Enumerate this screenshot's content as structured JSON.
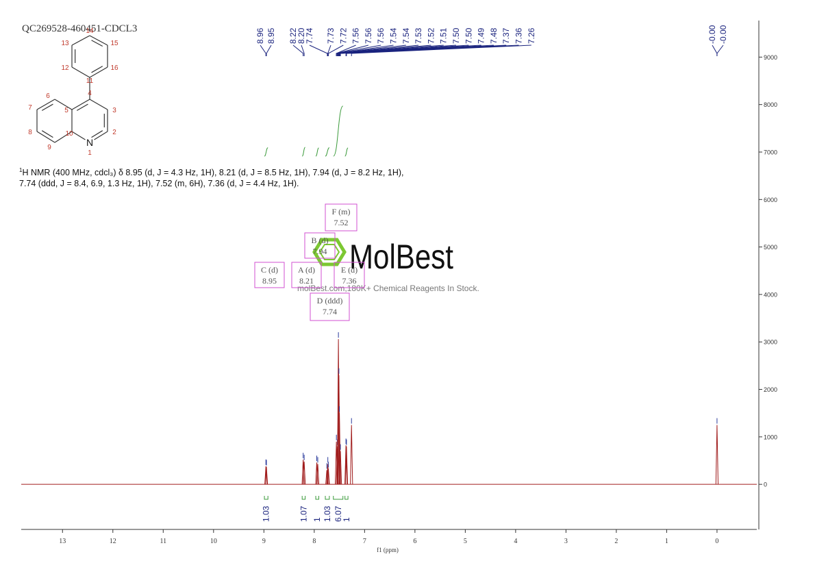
{
  "header": {
    "title": "QC269528-460451-CDCL3"
  },
  "molecule": {
    "atom_numbers": [
      "1",
      "2",
      "3",
      "4",
      "5",
      "6",
      "7",
      "8",
      "9",
      "10",
      "11",
      "12",
      "13",
      "14",
      "15",
      "16"
    ],
    "heteroatom": "N"
  },
  "description": {
    "sup": "1",
    "line1": "H NMR (400 MHz, cdcl₃) δ 8.95 (d, J = 4.3 Hz, 1H), 8.21 (d, J = 8.5 Hz, 1H), 7.94 (d, J = 8.2 Hz, 1H),",
    "line2": "7.74 (ddd, J = 8.4, 6.9, 1.3 Hz, 1H), 7.52 (m, 6H), 7.36 (d, J = 4.4 Hz, 1H)."
  },
  "watermark": {
    "logo": "MolBest",
    "tagline": "molBest.com,180K+ Chemical Reagents In Stock."
  },
  "chart_data": {
    "type": "nmr",
    "x_label": "f1 (ppm)",
    "xlim": [
      13.82,
      -0.79
    ],
    "xticks": [
      13,
      12,
      11,
      10,
      9,
      8,
      7,
      6,
      5,
      4,
      3,
      2,
      1,
      0
    ],
    "ylim": [
      -950,
      9770
    ],
    "yticks": [
      0,
      1000,
      2000,
      3000,
      4000,
      5000,
      6000,
      7000,
      8000,
      9000
    ],
    "color": "#a01c1c",
    "peak_labels": [
      "8.96",
      "8.95",
      "8.22",
      "8.20",
      "7.74",
      "7.73",
      "7.72",
      "7.56",
      "7.56",
      "7.56",
      "7.54",
      "7.54",
      "7.53",
      "7.52",
      "7.51",
      "7.50",
      "7.50",
      "7.49",
      "7.48",
      "7.37",
      "7.36",
      "7.26",
      "-0.00",
      "-0.00"
    ],
    "peaks": [
      {
        "ppm": 8.96,
        "height": 380
      },
      {
        "ppm": 8.95,
        "height": 370
      },
      {
        "ppm": 8.22,
        "height": 520
      },
      {
        "ppm": 8.2,
        "height": 480
      },
      {
        "ppm": 7.95,
        "height": 460
      },
      {
        "ppm": 7.93,
        "height": 430
      },
      {
        "ppm": 7.75,
        "height": 300
      },
      {
        "ppm": 7.73,
        "height": 430
      },
      {
        "ppm": 7.72,
        "height": 330
      },
      {
        "ppm": 7.56,
        "height": 900
      },
      {
        "ppm": 7.54,
        "height": 800
      },
      {
        "ppm": 7.52,
        "height": 3060
      },
      {
        "ppm": 7.51,
        "height": 2300
      },
      {
        "ppm": 7.5,
        "height": 1500
      },
      {
        "ppm": 7.48,
        "height": 700
      },
      {
        "ppm": 7.37,
        "height": 820
      },
      {
        "ppm": 7.36,
        "height": 800
      },
      {
        "ppm": 7.26,
        "height": 1250
      },
      {
        "ppm": 0.0,
        "height": 1250
      }
    ],
    "integrals": [
      {
        "value": 1.03,
        "from": 8.99,
        "to": 8.92
      },
      {
        "value": 1.07,
        "from": 8.24,
        "to": 8.18
      },
      {
        "value": 1.0,
        "from": 7.97,
        "to": 7.91
      },
      {
        "value": 1.03,
        "from": 7.78,
        "to": 7.7
      },
      {
        "value": 6.07,
        "from": 7.62,
        "to": 7.43
      },
      {
        "value": 1.0,
        "from": 7.39,
        "to": 7.33
      }
    ],
    "multiplets": [
      {
        "label": "C (d)",
        "shift": 8.95
      },
      {
        "label": "A (d)",
        "shift": 8.21
      },
      {
        "label": "B (d)",
        "shift": 7.94
      },
      {
        "label": "E (d)",
        "shift": 7.36
      },
      {
        "label": "F (m)",
        "shift": 7.52
      },
      {
        "label": "D (ddd)",
        "shift": 7.74
      }
    ]
  }
}
